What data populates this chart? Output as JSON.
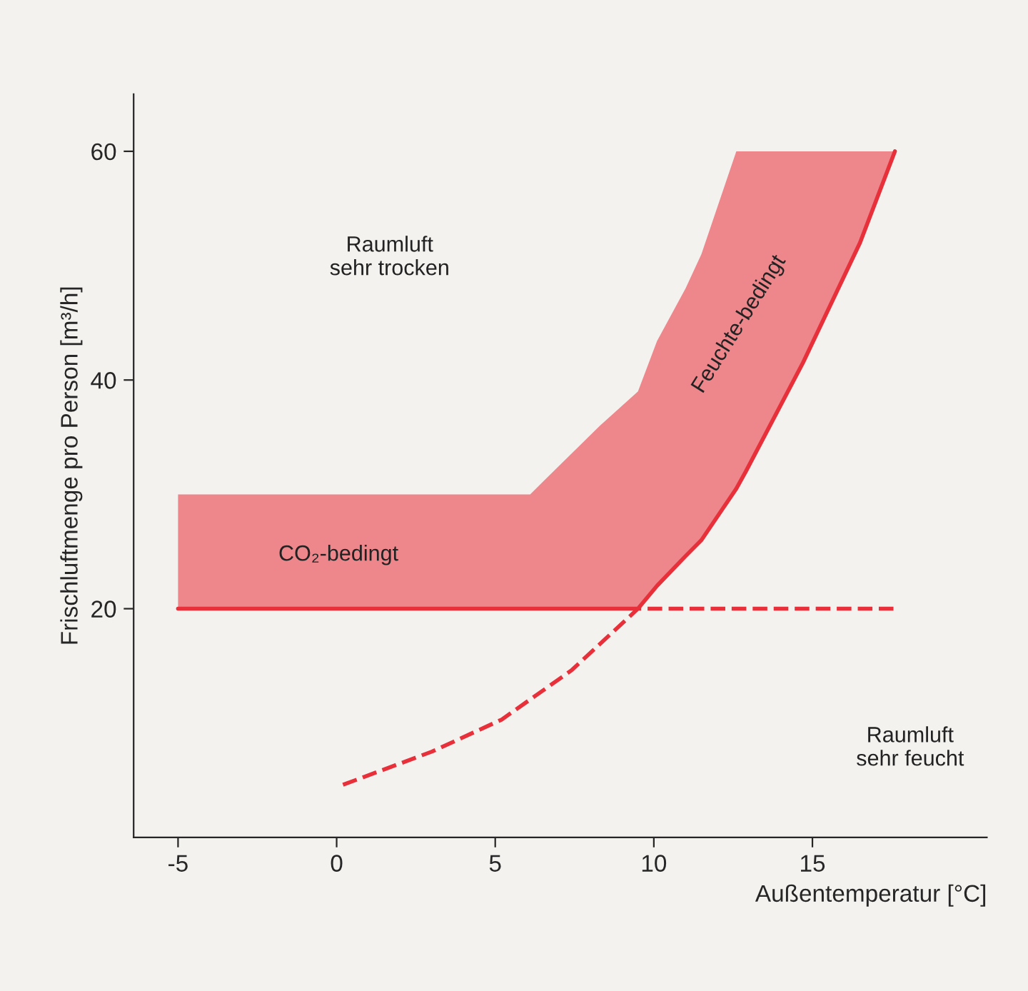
{
  "chart_data": {
    "type": "line",
    "xlabel": "Außentemperatur [°C]",
    "ylabel": "Frischluftmenge pro Person [m³/h]",
    "xlim": [
      -6.4,
      20.5
    ],
    "xticks": [
      -5,
      0,
      5,
      10,
      15
    ],
    "ylim": [
      0,
      65
    ],
    "yticks": [
      20,
      40,
      60
    ],
    "grid": false,
    "series": [
      {
        "color": "#e8303a",
        "line_style": "dashed",
        "x": [
          0.2,
          3,
          5.2,
          7.4,
          9.5,
          17.6
        ],
        "values": [
          4.6,
          7.5,
          10.3,
          14.6,
          20,
          20
        ]
      },
      {
        "color": "#e8303a",
        "line_style": "solid",
        "x": [
          -5,
          6.1,
          8.3,
          9.5,
          10.1,
          11.0,
          11.5,
          12.6,
          12.9,
          14.7,
          16.5,
          17.6
        ],
        "values": [
          20,
          20,
          20,
          20,
          22,
          24.6,
          26,
          30.5,
          32,
          41.5,
          52,
          60
        ],
        "lower": [
          20,
          20,
          20,
          20,
          22,
          24.6,
          26,
          30.5,
          32,
          41.5,
          52,
          60
        ],
        "upper": [
          30,
          30,
          36,
          39,
          43.4,
          48,
          51,
          60,
          60,
          60,
          60,
          60
        ]
      }
    ],
    "annotations": [
      "Raumluft\nsehr trocken",
      "CO₂-bedingt",
      "Feuchte-bedingt",
      "Raumluft\nsehr feucht"
    ]
  }
}
